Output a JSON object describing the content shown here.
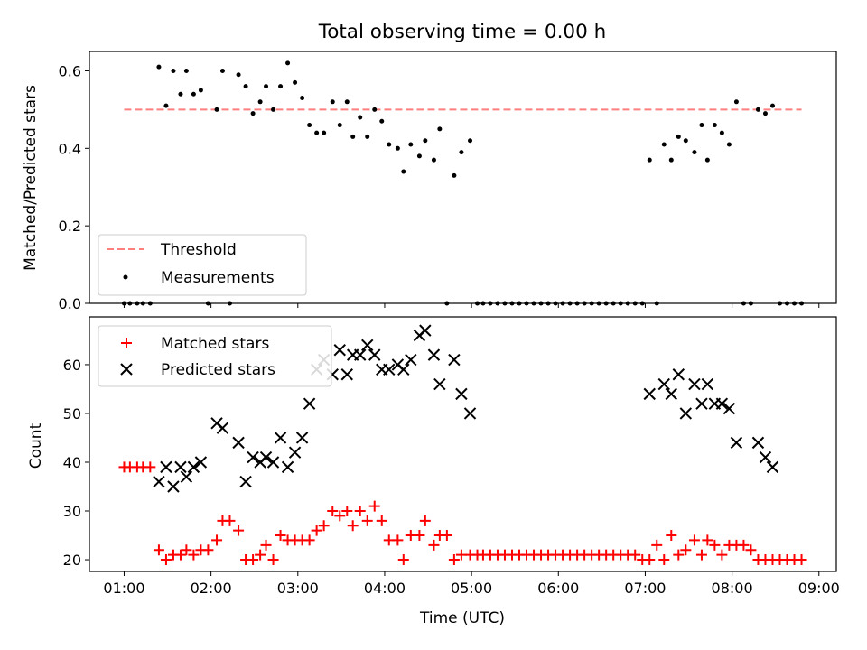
{
  "chart_data": [
    {
      "type": "scatter",
      "title": "Total observing time = 0.00 h",
      "xlabel": "",
      "ylabel": "Matched/Predicted stars",
      "xlim": [
        "00:36",
        "09:12"
      ],
      "ylim": [
        0,
        0.65
      ],
      "y_ticks": [
        0.0,
        0.2,
        0.4,
        0.6
      ],
      "y_tick_labels": [
        "0.0",
        "0.2",
        "0.4",
        "0.6"
      ],
      "x_ticks": [
        "01:00",
        "02:00",
        "03:00",
        "04:00",
        "05:00",
        "06:00",
        "07:00",
        "08:00",
        "09:00"
      ],
      "x_tick_labels_visible": false,
      "legend_position": "lower-left",
      "series": [
        {
          "name": "Threshold",
          "type": "dashed-line",
          "color": "#ff7f7f",
          "x": [
            "01:00",
            "08:48"
          ],
          "y": [
            0.5,
            0.5
          ]
        },
        {
          "name": "Measurements",
          "type": "scatter",
          "marker": "dot",
          "color": "#000000",
          "x": [
            "01:00",
            "01:04",
            "01:09",
            "01:13",
            "01:18",
            "01:24",
            "01:29",
            "01:34",
            "01:39",
            "01:43",
            "01:48",
            "01:53",
            "01:58",
            "02:04",
            "02:08",
            "02:13",
            "02:19",
            "02:24",
            "02:29",
            "02:34",
            "02:38",
            "02:43",
            "02:48",
            "02:53",
            "02:58",
            "03:03",
            "03:08",
            "03:13",
            "03:18",
            "03:24",
            "03:29",
            "03:34",
            "03:38",
            "03:43",
            "03:48",
            "03:53",
            "03:58",
            "04:03",
            "04:09",
            "04:13",
            "04:18",
            "04:24",
            "04:28",
            "04:34",
            "04:38",
            "04:43",
            "04:48",
            "04:53",
            "04:59",
            "05:04",
            "05:08",
            "05:13",
            "05:18",
            "05:23",
            "05:28",
            "05:33",
            "05:38",
            "05:43",
            "05:48",
            "05:53",
            "05:58",
            "06:03",
            "06:08",
            "06:13",
            "06:18",
            "06:23",
            "06:28",
            "06:33",
            "06:38",
            "06:43",
            "06:48",
            "06:53",
            "06:58",
            "07:03",
            "07:08",
            "07:13",
            "07:18",
            "07:23",
            "07:28",
            "07:34",
            "07:39",
            "07:43",
            "07:48",
            "07:53",
            "07:58",
            "08:03",
            "08:08",
            "08:13",
            "08:18",
            "08:23",
            "08:28",
            "08:33",
            "08:38",
            "08:43",
            "08:48"
          ],
          "y": [
            0,
            0,
            0,
            0,
            0,
            0.61,
            0.51,
            0.6,
            0.54,
            0.6,
            0.54,
            0.55,
            0,
            0.5,
            0.6,
            0,
            0.59,
            0.56,
            0.49,
            0.52,
            0.56,
            0.5,
            0.56,
            0.62,
            0.57,
            0.53,
            0.46,
            0.44,
            0.44,
            0.52,
            0.46,
            0.52,
            0.43,
            0.48,
            0.43,
            0.5,
            0.47,
            0.41,
            0.4,
            0.34,
            0.41,
            0.38,
            0.42,
            0.37,
            0.45,
            0,
            0.33,
            0.39,
            0.42,
            0,
            0,
            0,
            0,
            0,
            0,
            0,
            0,
            0,
            0,
            0,
            0,
            0,
            0,
            0,
            0,
            0,
            0,
            0,
            0,
            0,
            0,
            0,
            0,
            0.37,
            0,
            0.41,
            0.37,
            0.43,
            0.42,
            0.39,
            0.46,
            0.37,
            0.46,
            0.44,
            0.41,
            0.52,
            0,
            0,
            0.5,
            0.49,
            0.51,
            0,
            0,
            0,
            0
          ]
        }
      ]
    },
    {
      "type": "scatter",
      "title": "",
      "xlabel": "Time (UTC)",
      "ylabel": "Count",
      "xlim": [
        "00:36",
        "09:12"
      ],
      "ylim": [
        17.6,
        69.8
      ],
      "y_ticks": [
        20,
        30,
        40,
        50,
        60
      ],
      "y_tick_labels": [
        "20",
        "30",
        "40",
        "50",
        "60"
      ],
      "x_ticks": [
        "01:00",
        "02:00",
        "03:00",
        "04:00",
        "05:00",
        "06:00",
        "07:00",
        "08:00",
        "09:00"
      ],
      "x_tick_labels": [
        "01:00",
        "02:00",
        "03:00",
        "04:00",
        "05:00",
        "06:00",
        "07:00",
        "08:00",
        "09:00"
      ],
      "legend_position": "top-left",
      "series": [
        {
          "name": "Matched stars",
          "type": "scatter",
          "marker": "plus",
          "color": "#ff0000",
          "x": [
            "01:00",
            "01:04",
            "01:09",
            "01:13",
            "01:18",
            "01:24",
            "01:29",
            "01:34",
            "01:39",
            "01:43",
            "01:48",
            "01:53",
            "01:58",
            "02:04",
            "02:08",
            "02:13",
            "02:19",
            "02:24",
            "02:29",
            "02:34",
            "02:38",
            "02:43",
            "02:48",
            "02:53",
            "02:58",
            "03:03",
            "03:08",
            "03:13",
            "03:18",
            "03:24",
            "03:29",
            "03:34",
            "03:38",
            "03:43",
            "03:48",
            "03:53",
            "03:58",
            "04:03",
            "04:09",
            "04:13",
            "04:18",
            "04:24",
            "04:28",
            "04:34",
            "04:38",
            "04:43",
            "04:48",
            "04:53",
            "04:59",
            "05:04",
            "05:08",
            "05:13",
            "05:18",
            "05:23",
            "05:28",
            "05:33",
            "05:38",
            "05:43",
            "05:48",
            "05:53",
            "05:58",
            "06:03",
            "06:08",
            "06:13",
            "06:18",
            "06:23",
            "06:28",
            "06:33",
            "06:38",
            "06:43",
            "06:48",
            "06:53",
            "06:58",
            "07:03",
            "07:08",
            "07:13",
            "07:18",
            "07:23",
            "07:28",
            "07:34",
            "07:39",
            "07:43",
            "07:48",
            "07:53",
            "07:58",
            "08:03",
            "08:08",
            "08:13",
            "08:18",
            "08:23",
            "08:28",
            "08:33",
            "08:38",
            "08:43",
            "08:48"
          ],
          "y": [
            39,
            39,
            39,
            39,
            39,
            22,
            20,
            21,
            21,
            22,
            21,
            22,
            22,
            24,
            28,
            28,
            26,
            20,
            20,
            21,
            23,
            20,
            25,
            24,
            24,
            24,
            24,
            26,
            27,
            30,
            29,
            30,
            27,
            30,
            28,
            31,
            28,
            24,
            24,
            20,
            25,
            25,
            28,
            23,
            25,
            25,
            20,
            21,
            21,
            21,
            21,
            21,
            21,
            21,
            21,
            21,
            21,
            21,
            21,
            21,
            21,
            21,
            21,
            21,
            21,
            21,
            21,
            21,
            21,
            21,
            21,
            21,
            20,
            20,
            23,
            20,
            25,
            21,
            22,
            24,
            21,
            24,
            23,
            21,
            23,
            23,
            23,
            22,
            20,
            20,
            20,
            20,
            20,
            20,
            20
          ]
        },
        {
          "name": "Predicted stars",
          "type": "scatter",
          "marker": "x",
          "color": "#000000",
          "x": [
            "01:24",
            "01:29",
            "01:34",
            "01:39",
            "01:43",
            "01:48",
            "01:53",
            "02:04",
            "02:08",
            "02:19",
            "02:24",
            "02:29",
            "02:34",
            "02:38",
            "02:43",
            "02:48",
            "02:53",
            "02:58",
            "03:03",
            "03:08",
            "03:13",
            "03:18",
            "03:24",
            "03:29",
            "03:34",
            "03:38",
            "03:43",
            "03:48",
            "03:53",
            "03:58",
            "04:03",
            "04:09",
            "04:13",
            "04:18",
            "04:24",
            "04:28",
            "04:34",
            "04:38",
            "04:48",
            "04:53",
            "04:59",
            "07:03",
            "07:13",
            "07:18",
            "07:23",
            "07:28",
            "07:34",
            "07:39",
            "07:43",
            "07:48",
            "07:53",
            "07:58",
            "08:03",
            "08:18",
            "08:23",
            "08:28"
          ],
          "y": [
            36,
            39,
            35,
            39,
            37,
            39,
            40,
            48,
            47,
            44,
            36,
            41,
            40,
            41,
            40,
            45,
            39,
            42,
            45,
            52,
            59,
            61,
            58,
            63,
            58,
            62,
            62,
            64,
            62,
            59,
            59,
            60,
            59,
            61,
            66,
            67,
            62,
            56,
            61,
            54,
            50,
            54,
            56,
            54,
            58,
            50,
            56,
            52,
            56,
            52,
            52,
            51,
            44,
            44,
            41,
            39
          ]
        }
      ]
    }
  ]
}
